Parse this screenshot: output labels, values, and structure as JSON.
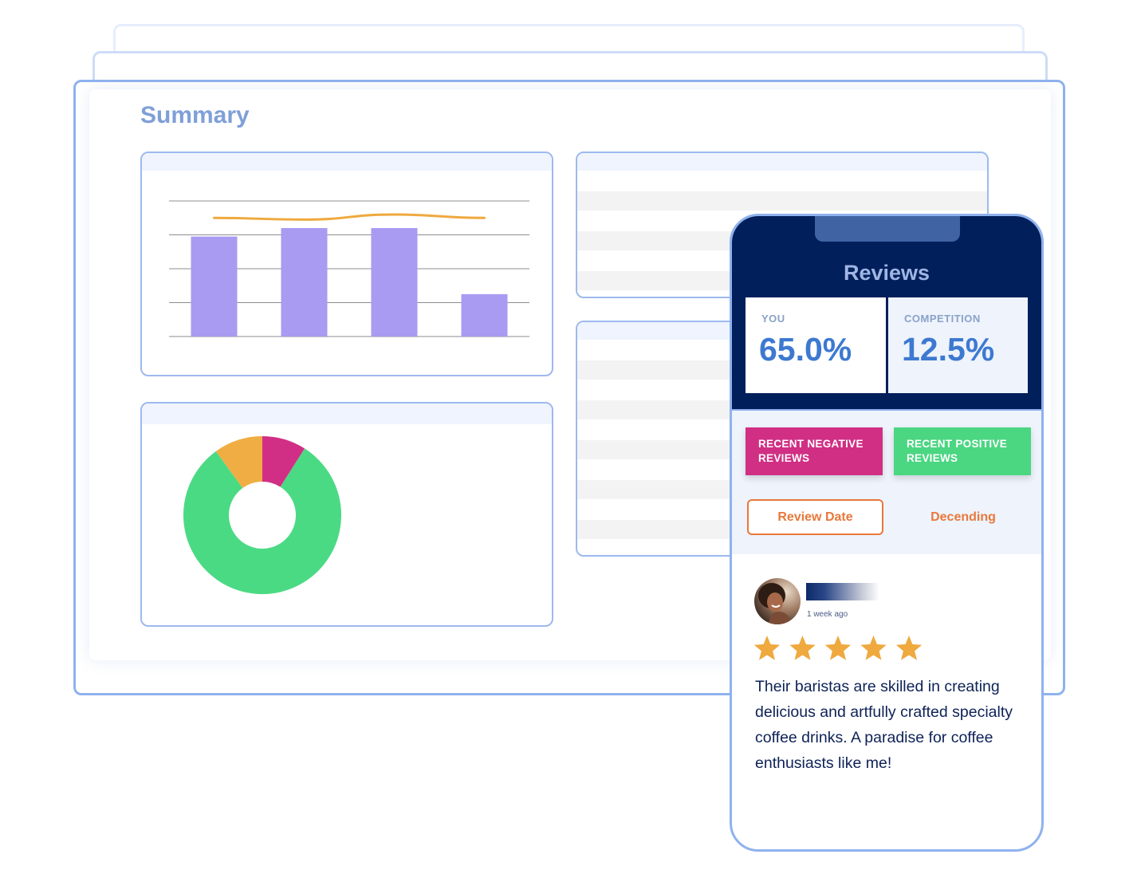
{
  "dashboard": {
    "title": "Summary"
  },
  "bar_chart": {
    "type": "bar",
    "values": [
      59,
      64,
      64,
      25
    ],
    "trend": [
      70,
      69,
      72,
      70
    ],
    "ylim": [
      0,
      80
    ],
    "grid": true,
    "bar_color": "#a89bf1",
    "trend_color": "#efa93e"
  },
  "donut_chart": {
    "type": "pie",
    "values": [
      81,
      10,
      9
    ],
    "colors": [
      "#4bda84",
      "#efad43",
      "#d12f85"
    ],
    "hole": true
  },
  "reviews": {
    "title": "Reviews",
    "you": {
      "label": "YOU",
      "value": "65.0%"
    },
    "competition": {
      "label": "COMPETITION",
      "value": "12.5%"
    },
    "negative_button": "RECENT NEGATIVE REVIEWS",
    "positive_button": "RECENT POSITIVE REVIEWS",
    "sort_field": "Review Date",
    "sort_order": "Decending",
    "review": {
      "time": "1 week ago",
      "rating": 5,
      "text": "Their baristas are skilled in creating delicious and artfully crafted specialty coffee drinks. A paradise for coffee enthusiasts like me!"
    }
  },
  "colors": {
    "accent_blue": "#3d79d1",
    "navy": "#001f5b",
    "negative": "#d02f84",
    "positive": "#4bd682",
    "orange": "#e9783b",
    "star": "#efa93e"
  }
}
